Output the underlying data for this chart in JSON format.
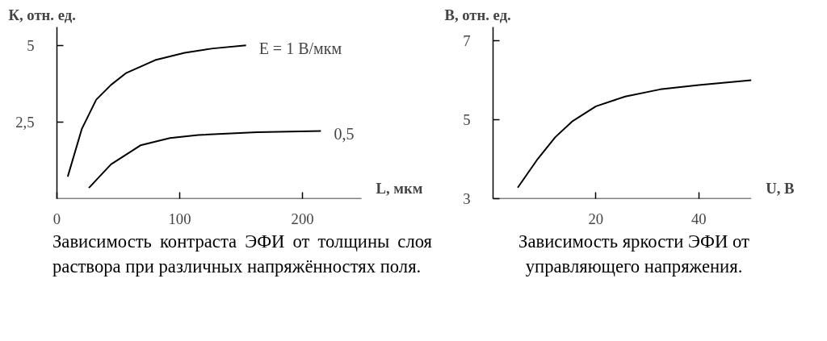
{
  "chart_data": [
    {
      "type": "line",
      "xlabel": "L, мкм",
      "ylabel": "К, отн. ед.",
      "xlim": [
        0,
        248
      ],
      "ylim": [
        0,
        5.6
      ],
      "xticks": [
        0,
        100,
        200
      ],
      "yticks": [
        {
          "value": 2.5,
          "label": "2,5"
        },
        5
      ],
      "series": [
        {
          "name": "E = 1 В/мкм",
          "color": "#000000",
          "x": [
            8.8,
            20.2,
            32,
            44,
            56,
            80,
            104,
            127,
            154
          ],
          "values": [
            0.72,
            2.27,
            3.23,
            3.71,
            4.09,
            4.52,
            4.76,
            4.9,
            5.0
          ]
        },
        {
          "name": "0,5",
          "color": "#000000",
          "x": [
            26,
            44,
            68,
            92,
            115,
            163,
            215
          ],
          "values": [
            0.35,
            1.12,
            1.74,
            1.98,
            2.08,
            2.17,
            2.21
          ]
        }
      ],
      "annotations": [
        "Зависимость контраста ЭФИ от толщины слоя раствора при различных напряжённостях поля."
      ]
    },
    {
      "type": "line",
      "xlabel": "U, В",
      "ylabel": "В, отн. ед.",
      "xlim": [
        0,
        50.2
      ],
      "ylim": [
        3,
        7.35
      ],
      "xticks": [
        20,
        40
      ],
      "yticks": [
        3,
        5,
        7
      ],
      "series": [
        {
          "color": "#000000",
          "x": [
            4.8,
            8.7,
            12.1,
            15.5,
            20,
            25.7,
            32.5,
            40,
            50.2
          ],
          "values": [
            3.28,
            4.01,
            4.56,
            4.97,
            5.34,
            5.59,
            5.77,
            5.88,
            6.0
          ]
        }
      ],
      "annotations": [
        "Зависимость яркости ЭФИ от управляющего напряжения."
      ]
    }
  ]
}
